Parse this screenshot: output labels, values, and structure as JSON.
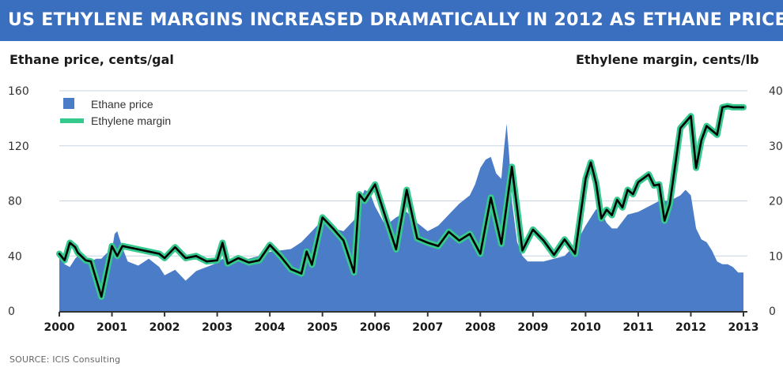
{
  "header": {
    "title": "US ETHYLENE MARGINS INCREASED DRAMATICALLY IN 2012 AS ETHANE PRICES FELL"
  },
  "source": "SOURCE: ICIS Consulting",
  "colors": {
    "title_bar": "#3a6fbf",
    "area": "#4a7cc7",
    "margin_glow": "#35c98e",
    "margin_line": "#000000",
    "grid": "#c9d4e6"
  },
  "chart_data": {
    "type": "area",
    "title": "US ETHYLENE MARGINS INCREASED DRAMATICALLY IN 2012 AS ETHANE PRICES FELL",
    "left_axis_label": "Ethane price, cents/gal",
    "right_axis_label": "Ethylene margin, cents/lb",
    "left_ticks": [
      "160",
      "120",
      "80",
      "40",
      "0"
    ],
    "right_ticks": [
      "40",
      "30",
      "20",
      "10",
      "0"
    ],
    "x_ticks": [
      "2000",
      "2001",
      "2002",
      "2003",
      "2004",
      "2005",
      "2006",
      "2007",
      "2008",
      "2009",
      "2010",
      "2011",
      "2012",
      "2013"
    ],
    "xlim": [
      2000,
      2013
    ],
    "ylim_left": [
      0,
      160
    ],
    "ylim_right": [
      0,
      40
    ],
    "grid": true,
    "legend_position": "top-left",
    "series": [
      {
        "name": "Ethane price",
        "axis": "left",
        "x": [
          2000.0,
          2000.1,
          2000.2,
          2000.3,
          2000.4,
          2000.5,
          2000.6,
          2000.7,
          2000.8,
          2000.9,
          2001.0,
          2001.05,
          2001.1,
          2001.2,
          2001.3,
          2001.5,
          2001.7,
          2001.9,
          2002.0,
          2002.2,
          2002.4,
          2002.6,
          2002.8,
          2003.0,
          2003.1,
          2003.2,
          2003.4,
          2003.6,
          2003.8,
          2004.0,
          2004.2,
          2004.4,
          2004.6,
          2004.8,
          2005.0,
          2005.2,
          2005.4,
          2005.6,
          2005.7,
          2005.8,
          2005.9,
          2006.0,
          2006.2,
          2006.4,
          2006.6,
          2006.8,
          2007.0,
          2007.2,
          2007.4,
          2007.6,
          2007.8,
          2007.9,
          2008.0,
          2008.1,
          2008.2,
          2008.3,
          2008.4,
          2008.45,
          2008.5,
          2008.55,
          2008.6,
          2008.7,
          2008.8,
          2008.9,
          2009.0,
          2009.2,
          2009.4,
          2009.6,
          2009.8,
          2010.0,
          2010.1,
          2010.2,
          2010.3,
          2010.4,
          2010.5,
          2010.6,
          2010.8,
          2011.0,
          2011.2,
          2011.4,
          2011.6,
          2011.8,
          2011.9,
          2012.0,
          2012.1,
          2012.2,
          2012.3,
          2012.4,
          2012.5,
          2012.6,
          2012.7,
          2012.8,
          2012.9,
          2013.0
        ],
        "values": [
          40,
          34,
          32,
          38,
          42,
          38,
          36,
          38,
          38,
          42,
          44,
          56,
          58,
          46,
          36,
          33,
          38,
          32,
          26,
          30,
          22,
          29,
          32,
          35,
          38,
          34,
          36,
          38,
          40,
          43,
          44,
          45,
          50,
          58,
          66,
          60,
          58,
          66,
          78,
          88,
          86,
          76,
          62,
          68,
          72,
          64,
          58,
          62,
          70,
          78,
          84,
          92,
          104,
          110,
          112,
          100,
          96,
          118,
          136,
          112,
          80,
          50,
          40,
          36,
          36,
          36,
          38,
          40,
          48,
          62,
          68,
          74,
          72,
          64,
          60,
          60,
          70,
          72,
          76,
          80,
          80,
          84,
          88,
          84,
          60,
          52,
          50,
          44,
          36,
          34,
          34,
          32,
          28,
          28
        ]
      },
      {
        "name": "Ethylene margin",
        "axis": "right",
        "x": [
          2000.0,
          2000.1,
          2000.2,
          2000.3,
          2000.35,
          2000.5,
          2000.6,
          2000.8,
          2001.0,
          2001.1,
          2001.2,
          2001.3,
          2001.5,
          2001.7,
          2001.9,
          2002.0,
          2002.2,
          2002.4,
          2002.6,
          2002.8,
          2003.0,
          2003.1,
          2003.2,
          2003.4,
          2003.6,
          2003.8,
          2004.0,
          2004.2,
          2004.4,
          2004.6,
          2004.7,
          2004.8,
          2005.0,
          2005.2,
          2005.4,
          2005.6,
          2005.7,
          2005.8,
          2006.0,
          2006.2,
          2006.4,
          2006.6,
          2006.8,
          2007.0,
          2007.2,
          2007.4,
          2007.6,
          2007.8,
          2008.0,
          2008.2,
          2008.4,
          2008.6,
          2008.8,
          2009.0,
          2009.2,
          2009.4,
          2009.6,
          2009.8,
          2010.0,
          2010.1,
          2010.2,
          2010.3,
          2010.4,
          2010.5,
          2010.6,
          2010.7,
          2010.8,
          2010.9,
          2011.0,
          2011.2,
          2011.3,
          2011.4,
          2011.5,
          2011.6,
          2011.8,
          2012.0,
          2012.1,
          2012.2,
          2012.3,
          2012.5,
          2012.6,
          2012.7,
          2012.8,
          2012.9,
          2013.0
        ],
        "values": [
          10.4,
          9.2,
          12.4,
          11.6,
          10.6,
          9.2,
          9.0,
          2.6,
          11.8,
          10.0,
          11.8,
          11.6,
          11.2,
          10.8,
          10.4,
          9.6,
          11.6,
          9.6,
          10.0,
          9.0,
          9.2,
          12.4,
          8.6,
          9.6,
          8.8,
          9.2,
          12.0,
          10.0,
          7.6,
          6.8,
          10.8,
          8.4,
          17.0,
          15.0,
          12.8,
          7.0,
          21.2,
          20.0,
          23.0,
          17.0,
          11.2,
          22.0,
          13.2,
          12.4,
          11.8,
          14.4,
          12.8,
          14.0,
          10.4,
          20.6,
          12.2,
          26.2,
          11.0,
          14.8,
          12.8,
          10.2,
          13.0,
          10.4,
          24.0,
          27.0,
          23.2,
          16.8,
          18.4,
          17.4,
          20.2,
          18.8,
          22.0,
          21.2,
          23.4,
          24.8,
          22.8,
          23.0,
          16.4,
          19.4,
          33.2,
          35.4,
          26.0,
          31.0,
          33.6,
          32.0,
          37.0,
          37.2,
          37.0,
          37.0,
          37.0
        ]
      }
    ]
  }
}
